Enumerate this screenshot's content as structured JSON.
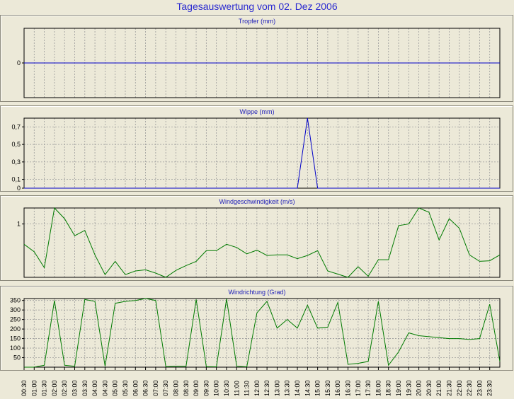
{
  "page_title": "Tagesauswertung vom 02. Dez 2006",
  "colors": {
    "background": "#ece9d8",
    "title": "#2a2ad0",
    "blue_series": "#0000c8",
    "green_series": "#007a00",
    "grid": "#9a9a9a"
  },
  "x_tick_labels": [
    "00:30",
    "01:00",
    "01:30",
    "02:00",
    "02:30",
    "03:00",
    "03:30",
    "04:00",
    "04:30",
    "05:00",
    "05:30",
    "06:00",
    "06:30",
    "07:00",
    "07:30",
    "08:00",
    "08:30",
    "09:00",
    "09:30",
    "10:00",
    "10:30",
    "11:00",
    "11:30",
    "12:00",
    "12:30",
    "13:00",
    "13:30",
    "14:00",
    "14:30",
    "15:00",
    "15:30",
    "16:00",
    "16:30",
    "17:00",
    "17:30",
    "18:00",
    "18:30",
    "19:00",
    "19:30",
    "20:00",
    "20:30",
    "21:00",
    "21:30",
    "22:00",
    "22:30",
    "23:00",
    "23:30"
  ],
  "chart_data": [
    {
      "type": "line",
      "title": "Tropfer (mm)",
      "y_ticks": [
        "0"
      ],
      "ylim": [
        -1,
        1
      ],
      "grid": true,
      "series": [
        {
          "values": [
            0,
            0,
            0,
            0,
            0,
            0,
            0,
            0,
            0,
            0,
            0,
            0,
            0,
            0,
            0,
            0,
            0,
            0,
            0,
            0,
            0,
            0,
            0,
            0,
            0,
            0,
            0,
            0,
            0,
            0,
            0,
            0,
            0,
            0,
            0,
            0,
            0,
            0,
            0,
            0,
            0,
            0,
            0,
            0,
            0,
            0,
            0,
            0
          ]
        }
      ]
    },
    {
      "type": "line",
      "title": "Wippe (mm)",
      "y_ticks": [
        "0",
        "0,1",
        "0,3",
        "0,5",
        "0,7"
      ],
      "ylim": [
        0,
        0.8
      ],
      "grid": true,
      "series": [
        {
          "values": [
            0,
            0,
            0,
            0,
            0,
            0,
            0,
            0,
            0,
            0,
            0,
            0,
            0,
            0,
            0,
            0,
            0,
            0,
            0,
            0,
            0,
            0,
            0,
            0,
            0,
            0,
            0,
            0,
            0.8,
            0,
            0,
            0,
            0,
            0,
            0,
            0,
            0,
            0,
            0,
            0,
            0,
            0,
            0,
            0,
            0,
            0,
            0,
            0
          ]
        }
      ]
    },
    {
      "type": "line",
      "title": "Windgeschwindigkeit (m/s)",
      "y_ticks": [
        "1"
      ],
      "ylim": [
        0,
        1.3
      ],
      "grid": true,
      "series": [
        {
          "values": [
            0.62,
            0.48,
            0.18,
            1.3,
            1.1,
            0.78,
            0.88,
            0.42,
            0.05,
            0.3,
            0.05,
            0.12,
            0.14,
            0.08,
            0,
            0.13,
            0.22,
            0.3,
            0.5,
            0.5,
            0.62,
            0.56,
            0.44,
            0.51,
            0.41,
            0.42,
            0.42,
            0.35,
            0.41,
            0.5,
            0.12,
            0.06,
            0,
            0.2,
            0.02,
            0.33,
            0.33,
            0.97,
            1.0,
            1.3,
            1.22,
            0.7,
            1.1,
            0.92,
            0.42,
            0.3,
            0.31,
            0.42
          ]
        }
      ]
    },
    {
      "type": "line",
      "title": "Windrichtung (Grad)",
      "y_ticks": [
        "50",
        "100",
        "150",
        "200",
        "250",
        "300",
        "350"
      ],
      "ylim": [
        0,
        360
      ],
      "grid": true,
      "series": [
        {
          "values": [
            0,
            0,
            10,
            350,
            10,
            5,
            355,
            345,
            5,
            335,
            345,
            350,
            360,
            350,
            3,
            5,
            5,
            355,
            3,
            2,
            358,
            5,
            2,
            285,
            345,
            205,
            250,
            205,
            325,
            205,
            210,
            340,
            15,
            20,
            30,
            345,
            10,
            80,
            180,
            165,
            160,
            155,
            150,
            150,
            145,
            150,
            330,
            30
          ]
        }
      ]
    }
  ]
}
